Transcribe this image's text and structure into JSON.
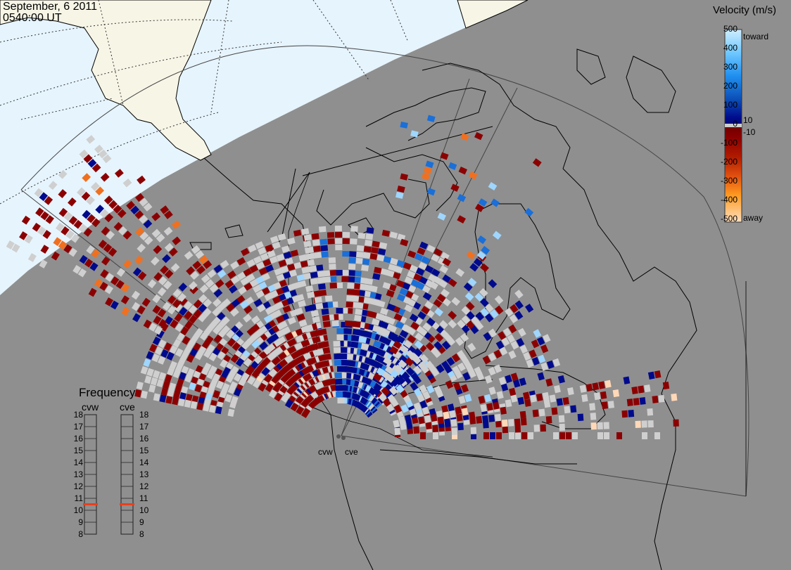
{
  "header": {
    "date": "September, 6 2011",
    "time": "0540:00 UT"
  },
  "colors": {
    "background": "#8f8f8f",
    "daylight": "#e6f4fd",
    "land_lit": "#f7f5e6",
    "scatter_gray": "#cfcfcf",
    "toward_strong": "#000a8c",
    "away_strong": "#8b0000"
  },
  "velocity_scale": {
    "title": "Velocity (m/s)",
    "ticks_upper": [
      "500",
      "400",
      "300",
      "200",
      "100",
      "0"
    ],
    "ticks_lower": [
      "-100",
      "-200",
      "-300",
      "-400",
      "-500"
    ],
    "label_toward": "toward",
    "label_away": "away",
    "label_pos10": "10",
    "label_neg10": "-10",
    "range_ms": [
      -500,
      500
    ]
  },
  "frequency": {
    "title": "Frequency",
    "columns": [
      "cvw",
      "cve"
    ],
    "levels": [
      "18",
      "17",
      "16",
      "15",
      "14",
      "13",
      "12",
      "11",
      "10",
      "9",
      "8"
    ],
    "cvw_mhz": 10.5,
    "cve_mhz": 10.5,
    "marker_color": "#e8401c"
  },
  "sites": {
    "west": "cvw",
    "east": "cve"
  }
}
